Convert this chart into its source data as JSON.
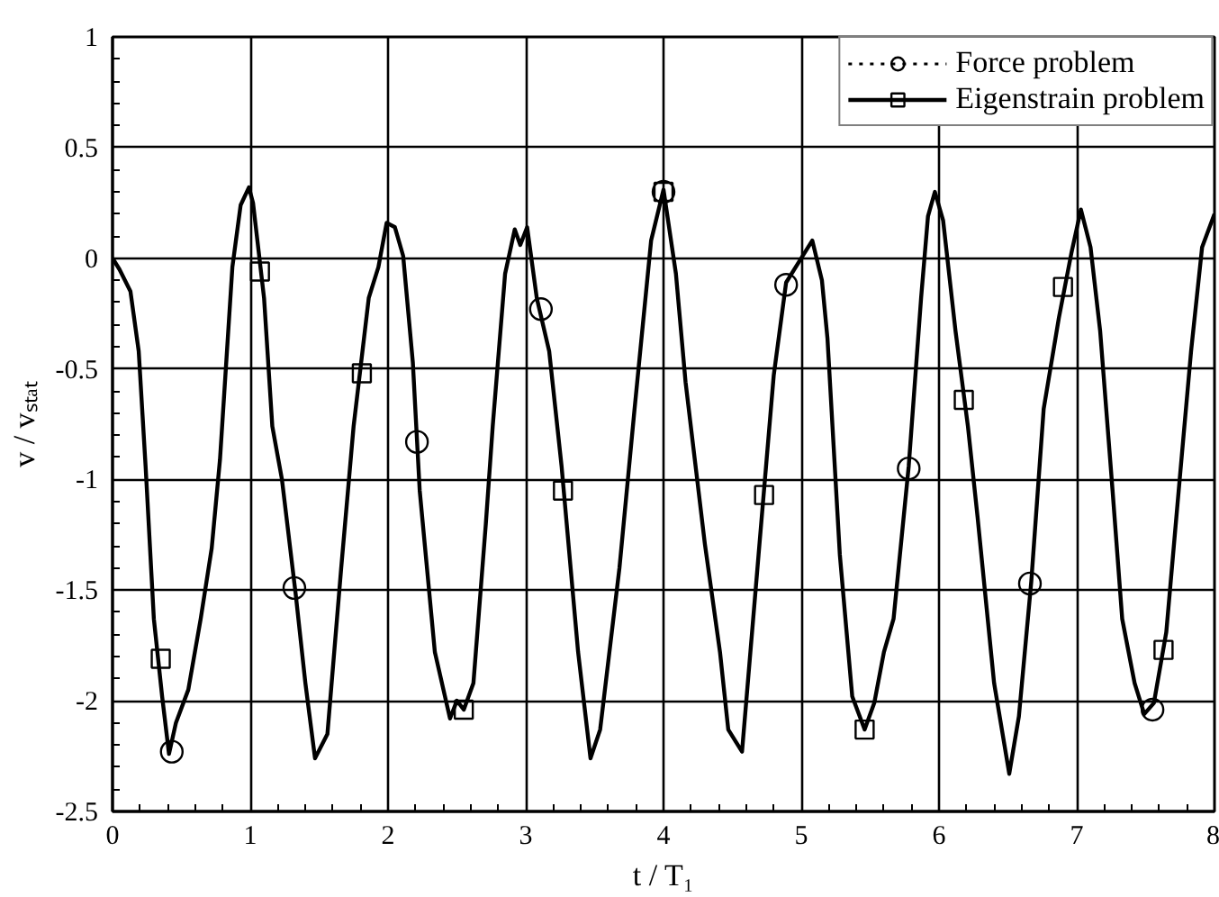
{
  "chart_data": {
    "type": "line",
    "xlabel": "t / T₁",
    "ylabel": "v / vₛₜₐₜ",
    "xlim": [
      0,
      8
    ],
    "ylim": [
      -2.5,
      1
    ],
    "xticks": [
      0,
      1,
      2,
      3,
      4,
      5,
      6,
      7,
      8
    ],
    "yticks": [
      -2.5,
      -2,
      -1.5,
      -1,
      -0.5,
      0,
      0.5,
      1
    ],
    "grid": true,
    "legend": "top right",
    "series": [
      {
        "name": "Force problem",
        "type": "scatter",
        "marker": "circle",
        "line_style": "dotted",
        "color": "#000000",
        "x": [
          0.43,
          1.32,
          2.21,
          3.11,
          4.0,
          4.89,
          5.78,
          6.66,
          7.55
        ],
        "values": [
          -2.23,
          -1.49,
          -0.83,
          -0.23,
          0.3,
          -0.12,
          -0.95,
          -1.47,
          -2.04
        ]
      },
      {
        "name": "Eigenstrain problem",
        "marker": "none",
        "line_style": "solid",
        "color": "#000000",
        "x": [
          0,
          0.05,
          0.13,
          0.19,
          0.24,
          0.3,
          0.36,
          0.41,
          0.46,
          0.55,
          0.64,
          0.72,
          0.78,
          0.87,
          0.93,
          0.99,
          1.02,
          1.1,
          1.16,
          1.23,
          1.33,
          1.4,
          1.47,
          1.56,
          1.66,
          1.75,
          1.86,
          1.93,
          1.99,
          2.05,
          2.11,
          2.18,
          2.23,
          2.34,
          2.45,
          2.5,
          2.55,
          2.62,
          2.71,
          2.76,
          2.85,
          2.92,
          2.96,
          3.01,
          3.08,
          3.17,
          3.26,
          3.38,
          3.47,
          3.54,
          3.68,
          3.79,
          3.91,
          4.0,
          4.09,
          4.16,
          4.3,
          4.41,
          4.47,
          4.57,
          4.69,
          4.8,
          4.89,
          4.99,
          5.08,
          5.15,
          5.19,
          5.28,
          5.37,
          5.46,
          5.53,
          5.6,
          5.67,
          5.78,
          5.87,
          5.92,
          5.97,
          6.03,
          6.12,
          6.21,
          6.28,
          6.4,
          6.51,
          6.58,
          6.67,
          6.76,
          6.87,
          6.96,
          7.03,
          7.1,
          7.17,
          7.26,
          7.33,
          7.42,
          7.49,
          7.56,
          7.65,
          7.74,
          7.83,
          7.91,
          8.0
        ],
        "values": [
          0,
          -0.05,
          -0.15,
          -0.42,
          -0.94,
          -1.63,
          -1.98,
          -2.24,
          -2.1,
          -1.95,
          -1.63,
          -1.31,
          -0.91,
          -0.04,
          0.24,
          0.32,
          0.25,
          -0.18,
          -0.76,
          -1.0,
          -1.52,
          -1.92,
          -2.26,
          -2.15,
          -1.4,
          -0.76,
          -0.18,
          -0.04,
          0.16,
          0.14,
          0.01,
          -0.47,
          -1.05,
          -1.78,
          -2.08,
          -2.0,
          -2.04,
          -1.92,
          -1.2,
          -0.76,
          -0.07,
          0.13,
          0.06,
          0.14,
          -0.18,
          -0.42,
          -0.94,
          -1.78,
          -2.26,
          -2.13,
          -1.4,
          -0.68,
          0.08,
          0.31,
          -0.07,
          -0.56,
          -1.29,
          -1.78,
          -2.13,
          -2.23,
          -1.34,
          -0.53,
          -0.11,
          -0.01,
          0.08,
          -0.1,
          -0.36,
          -1.34,
          -1.98,
          -2.13,
          -2.01,
          -1.78,
          -1.63,
          -0.94,
          -0.18,
          0.19,
          0.3,
          0.17,
          -0.33,
          -0.76,
          -1.17,
          -1.92,
          -2.33,
          -2.07,
          -1.46,
          -0.68,
          -0.27,
          0.02,
          0.22,
          0.05,
          -0.33,
          -1.05,
          -1.63,
          -1.92,
          -2.06,
          -2.01,
          -1.69,
          -1.05,
          -0.42,
          0.05,
          0.2
        ]
      },
      {
        "type": "scatter",
        "marker": "square",
        "color": "#000000",
        "x": [
          0.35,
          1.07,
          1.81,
          2.55,
          3.27,
          4.0,
          4.73,
          5.46,
          6.18,
          6.9,
          7.63
        ],
        "values": [
          -1.81,
          -0.06,
          -0.52,
          -2.04,
          -1.05,
          0.3,
          -1.07,
          -2.13,
          -0.64,
          -0.13,
          -1.77
        ]
      }
    ]
  }
}
